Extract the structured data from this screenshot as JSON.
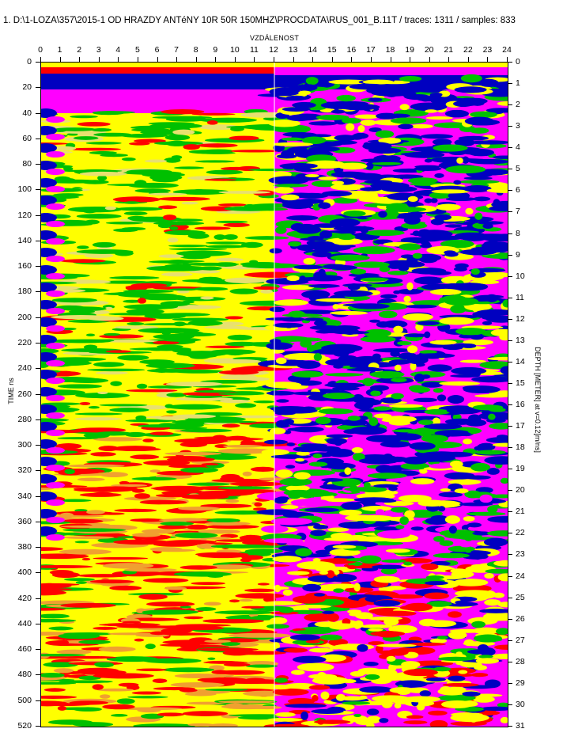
{
  "header": {
    "title": "1. D:\\1-LOZA\\357\\2015-1 OD HRAZDY ANTéNY 10R 50R 150MHZ\\PROCDATA\\RUS_001_B.11T / traces: 1311 / samples: 833"
  },
  "chart_data": {
    "type": "heatmap",
    "xlabel": "VZDÁLENOST",
    "ylabel_left": "TIME ns",
    "ylabel_right": "DEPTH [METER] at v=0.12[m/ns]",
    "x_ticks": [
      "0",
      "1",
      "2",
      "3",
      "4",
      "5",
      "6",
      "7",
      "8",
      "9",
      "10",
      "11",
      "12",
      "13",
      "14",
      "15",
      "16",
      "17",
      "18",
      "19",
      "20",
      "21",
      "22",
      "23",
      "24"
    ],
    "y_ticks_left": [
      "0",
      "20",
      "40",
      "60",
      "80",
      "100",
      "120",
      "140",
      "160",
      "180",
      "200",
      "220",
      "240",
      "260",
      "280",
      "300",
      "320",
      "340",
      "360",
      "380",
      "400",
      "420",
      "440",
      "460",
      "480",
      "500",
      "520"
    ],
    "y_ticks_right": [
      "0",
      "1",
      "2",
      "3",
      "4",
      "5",
      "6",
      "7",
      "8",
      "9",
      "10",
      "11",
      "12",
      "13",
      "14",
      "15",
      "16",
      "17",
      "18",
      "19",
      "20",
      "21",
      "22",
      "23",
      "24",
      "25",
      "26",
      "27",
      "28",
      "29",
      "30",
      "31"
    ],
    "xlim": [
      0,
      24
    ],
    "ylim_time": [
      0,
      520
    ],
    "ylim_depth": [
      0,
      31
    ],
    "palette": [
      "#0000c0",
      "#ff00ff",
      "#ff0000",
      "#ffff00",
      "#00c000"
    ],
    "section_split_x": 12
  }
}
